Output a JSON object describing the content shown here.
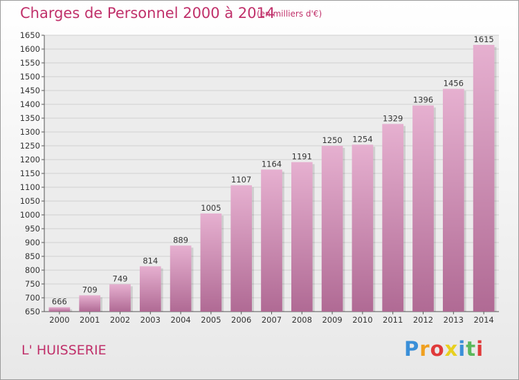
{
  "header": {
    "title": "Charges de Personnel 2000 à 2014",
    "subtitle": "(en milliers d'€)"
  },
  "footer": {
    "commune": "L' HUISSERIE",
    "logo_letters": [
      "P",
      "r",
      "o",
      "x",
      "i",
      "t",
      "i"
    ],
    "logo_colors": [
      "#3a8fd8",
      "#f0a020",
      "#e03a3a",
      "#e8d020",
      "#3a8fd8",
      "#5cb85c",
      "#e03a3a"
    ]
  },
  "colors": {
    "title": "#c0306a",
    "bar_top": "#e6b0d0",
    "bar_bottom": "#b06a94",
    "grid": "#d0d0d0",
    "axis": "#555555"
  },
  "chart_data": {
    "type": "bar",
    "title": "Charges de Personnel 2000 à 2014",
    "subtitle": "(en milliers d'€)",
    "xlabel": "",
    "ylabel": "",
    "categories": [
      "2000",
      "2001",
      "2002",
      "2003",
      "2004",
      "2005",
      "2006",
      "2007",
      "2008",
      "2009",
      "2010",
      "2011",
      "2012",
      "2013",
      "2014"
    ],
    "values": [
      666,
      709,
      749,
      814,
      889,
      1005,
      1107,
      1164,
      1191,
      1250,
      1254,
      1329,
      1396,
      1456,
      1615
    ],
    "ylim": [
      650,
      1650
    ],
    "yticks": [
      650,
      700,
      750,
      800,
      850,
      900,
      950,
      1000,
      1050,
      1100,
      1150,
      1200,
      1250,
      1300,
      1350,
      1400,
      1450,
      1500,
      1550,
      1600,
      1650
    ],
    "grid": true,
    "data_labels": true
  }
}
